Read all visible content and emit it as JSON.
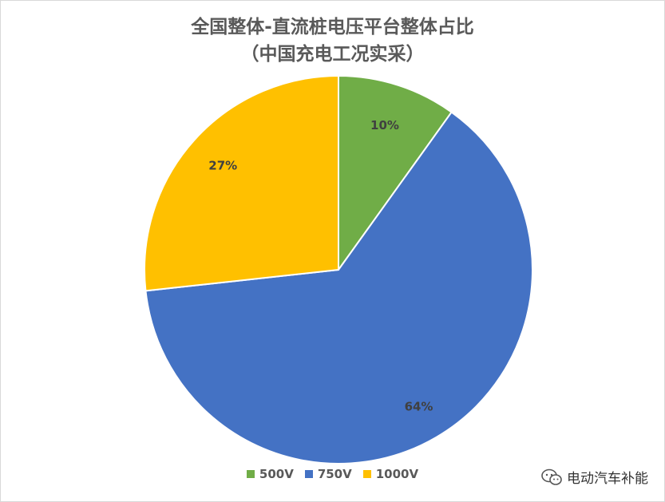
{
  "chart_data": {
    "type": "pie",
    "title_line1": "全国整体-直流桩电压平台整体占比",
    "title_line2": "（中国充电工况实采）",
    "labels": [
      "500V",
      "750V",
      "1000V"
    ],
    "values": [
      10,
      64,
      27
    ],
    "data_labels": [
      "10%",
      "64%",
      "27%"
    ],
    "colors": [
      "#70ad47",
      "#4472c4",
      "#ffc000"
    ],
    "start_angle_deg": 0,
    "legend_position": "bottom"
  },
  "watermark": {
    "text": "电动汽车补能",
    "icon": "wechat-icon"
  }
}
